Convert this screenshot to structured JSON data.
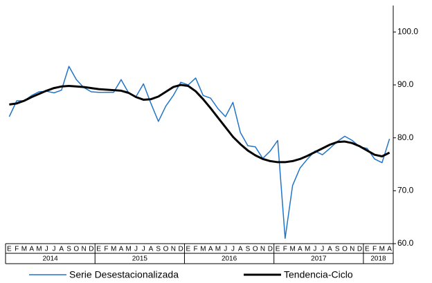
{
  "chart_data": {
    "type": "line",
    "categories": [
      "E",
      "F",
      "M",
      "A",
      "M",
      "J",
      "J",
      "A",
      "S",
      "O",
      "N",
      "D",
      "E",
      "F",
      "M",
      "A",
      "M",
      "J",
      "J",
      "A",
      "S",
      "O",
      "N",
      "D",
      "E",
      "F",
      "M",
      "A",
      "M",
      "J",
      "J",
      "A",
      "S",
      "O",
      "N",
      "D",
      "E",
      "F",
      "M",
      "A",
      "M",
      "J",
      "J",
      "A",
      "S",
      "O",
      "N",
      "D",
      "E",
      "F",
      "M",
      "A"
    ],
    "year_labels": [
      "2014",
      "2015",
      "2016",
      "2017",
      "2018"
    ],
    "series": [
      {
        "name": "Serie Desestacionalizada",
        "color": "#1f74c8",
        "values": [
          84,
          87,
          87,
          88,
          88.7,
          88.8,
          88.5,
          89,
          93.5,
          91,
          89.5,
          88.7,
          88.6,
          88.6,
          88.6,
          91,
          88.5,
          87.8,
          90.2,
          86.5,
          83.1,
          86,
          88,
          90.5,
          90,
          91.3,
          88,
          87.5,
          85.5,
          84,
          86.7,
          81,
          78.5,
          78.3,
          76.1,
          77.5,
          79.5,
          61,
          71,
          74.3,
          76,
          77.5,
          76.8,
          78,
          79.3,
          80.3,
          79.5,
          78.3,
          78,
          76,
          75.3,
          79.8
        ]
      },
      {
        "name": "Tendencia-Ciclo",
        "color": "#000000",
        "values": [
          86.3,
          86.5,
          87,
          87.7,
          88.3,
          88.9,
          89.4,
          89.7,
          89.8,
          89.7,
          89.6,
          89.4,
          89.2,
          89.1,
          89,
          88.9,
          88.5,
          87.7,
          87.2,
          87.3,
          87.8,
          88.7,
          89.6,
          90,
          89.8,
          88.8,
          87.3,
          85.6,
          83.8,
          82,
          80.2,
          78.8,
          77.6,
          76.7,
          76,
          75.6,
          75.4,
          75.4,
          75.6,
          76,
          76.6,
          77.3,
          78,
          78.7,
          79.2,
          79.3,
          79,
          78.4,
          77.6,
          76.8,
          76.5,
          77.2
        ]
      }
    ],
    "ylim": [
      60,
      105
    ],
    "yticks": [
      {
        "value": 60,
        "label": "60.0"
      },
      {
        "value": 70,
        "label": "70.0"
      },
      {
        "value": 80,
        "label": "80.0"
      },
      {
        "value": 90,
        "label": "90.0"
      },
      {
        "value": 100,
        "label": "100.0"
      }
    ],
    "grid": false
  }
}
